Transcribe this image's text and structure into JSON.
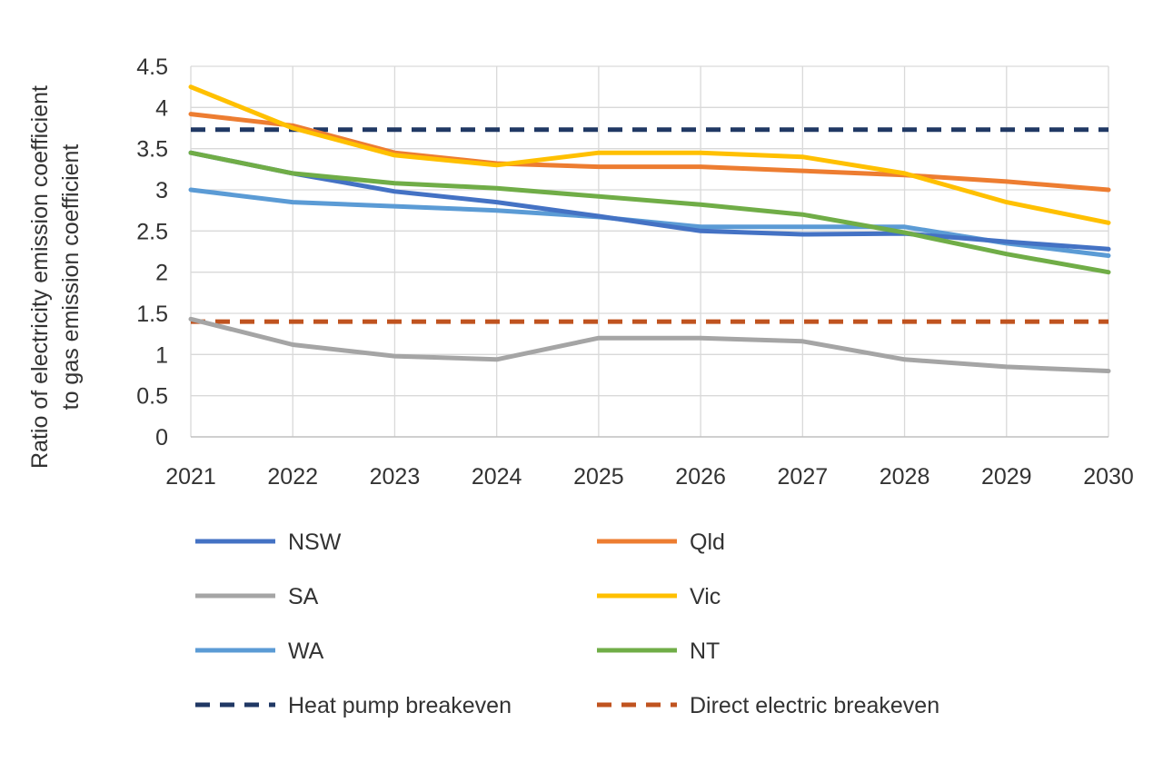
{
  "chart_data": {
    "type": "line",
    "xlabel": "",
    "ylabel_lines": [
      "Ratio of electricity emission coefficient",
      "to gas emission coefficient"
    ],
    "ylim": [
      0,
      4.5
    ],
    "yticks": [
      "0",
      "0.5",
      "1",
      "1.5",
      "2",
      "2.5",
      "3",
      "3.5",
      "4",
      "4.5"
    ],
    "categories": [
      "2021",
      "2022",
      "2023",
      "2024",
      "2025",
      "2026",
      "2027",
      "2028",
      "2029",
      "2030"
    ],
    "grid": "horizontal",
    "legend_position": "bottom",
    "series": [
      {
        "name": "NSW",
        "color": "#4472C4",
        "style": "solid",
        "values": [
          3.45,
          3.2,
          2.98,
          2.85,
          2.68,
          2.5,
          2.46,
          2.47,
          2.37,
          2.28
        ]
      },
      {
        "name": "Qld",
        "color": "#ED7D31",
        "style": "solid",
        "values": [
          3.92,
          3.78,
          3.45,
          3.32,
          3.28,
          3.28,
          3.23,
          3.18,
          3.1,
          3.0
        ]
      },
      {
        "name": "SA",
        "color": "#A5A5A5",
        "style": "solid",
        "values": [
          1.43,
          1.12,
          0.98,
          0.94,
          1.2,
          1.2,
          1.16,
          0.94,
          0.85,
          0.8
        ]
      },
      {
        "name": "Vic",
        "color": "#FFC000",
        "style": "solid",
        "values": [
          4.25,
          3.75,
          3.42,
          3.3,
          3.45,
          3.45,
          3.4,
          3.2,
          2.85,
          2.6
        ]
      },
      {
        "name": "WA",
        "color": "#5B9BD5",
        "style": "solid",
        "values": [
          3.0,
          2.85,
          2.8,
          2.75,
          2.67,
          2.55,
          2.55,
          2.55,
          2.35,
          2.2
        ]
      },
      {
        "name": "NT",
        "color": "#70AD47",
        "style": "solid",
        "values": [
          3.45,
          3.2,
          3.08,
          3.02,
          2.92,
          2.82,
          2.7,
          2.48,
          2.22,
          2.0
        ]
      },
      {
        "name": "Heat pump breakeven",
        "color": "#203864",
        "style": "dashed",
        "values": [
          3.73,
          3.73,
          3.73,
          3.73,
          3.73,
          3.73,
          3.73,
          3.73,
          3.73,
          3.73
        ]
      },
      {
        "name": "Direct electric breakeven",
        "color": "#C0531F",
        "style": "dashed",
        "values": [
          1.4,
          1.4,
          1.4,
          1.4,
          1.4,
          1.4,
          1.4,
          1.4,
          1.4,
          1.4
        ]
      }
    ]
  }
}
